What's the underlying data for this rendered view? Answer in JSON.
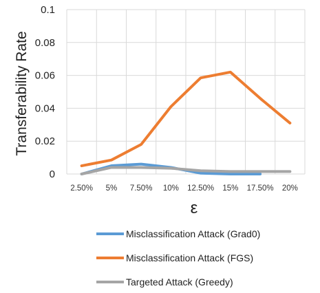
{
  "chart_data": {
    "type": "line",
    "xlabel": "ε",
    "ylabel": "Transferability Rate",
    "x": [
      "2.50%",
      "5%",
      "7.50%",
      "10%",
      "12.50%",
      "15%",
      "17.50%",
      "20%"
    ],
    "ylim": [
      0,
      0.1
    ],
    "yticks": [
      "0",
      "0.02",
      "0.04",
      "0.06",
      "0.08",
      "0.1"
    ],
    "ytick_values": [
      0,
      0.02,
      0.04,
      0.06,
      0.08,
      0.1
    ],
    "grid": true,
    "legend_placement": "bottom",
    "series": [
      {
        "name": "Misclassification Attack (Grad0)",
        "color": "#5B9BD5",
        "values": [
          0.0,
          0.005,
          0.006,
          0.004,
          0.0005,
          0.0,
          0.0,
          null
        ]
      },
      {
        "name": "Misclassification Attack (FGS)",
        "color": "#ED7D31",
        "values": [
          0.005,
          0.0085,
          0.018,
          0.041,
          0.0585,
          0.062,
          0.046,
          0.031
        ]
      },
      {
        "name": "Targeted Attack (Greedy)",
        "color": "#A5A5A5",
        "values": [
          0.0,
          0.004,
          0.004,
          0.0035,
          0.002,
          0.0015,
          0.0015,
          0.0015
        ]
      }
    ]
  }
}
